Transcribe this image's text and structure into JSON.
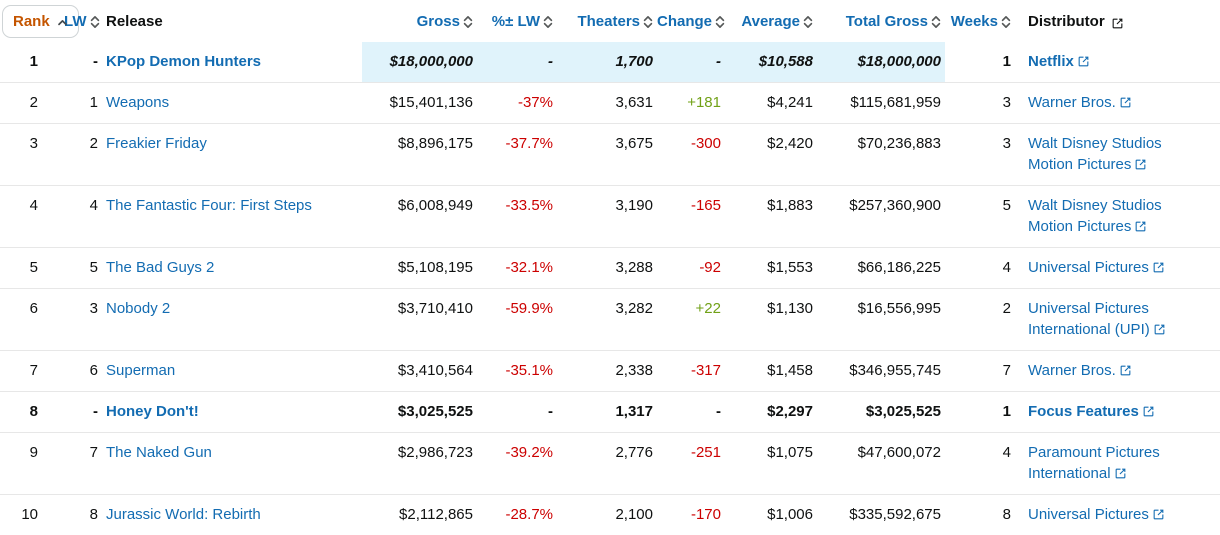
{
  "colors": {
    "link_blue": "#136cb2",
    "rank_sorted_orange": "#c45500",
    "negative_red": "#cc0000",
    "positive_green": "#71a117",
    "estimate_highlight_blue": "#e0f3fb",
    "row_divider_gray": "#e7e7e7",
    "text_black": "#0f1111",
    "sort_icon_gray": "#565959"
  },
  "table": {
    "columns": [
      {
        "key": "rank",
        "label": "Rank",
        "align": "right",
        "sortable": true,
        "sorted": "asc",
        "icon": "chevron-up-icon"
      },
      {
        "key": "lw",
        "label": "LW",
        "align": "right",
        "sortable": true,
        "icon": "sort-chevrons-icon"
      },
      {
        "key": "release",
        "label": "Release",
        "align": "left",
        "sortable": false
      },
      {
        "key": "gross",
        "label": "Gross",
        "align": "right",
        "sortable": true,
        "icon": "sort-chevrons-icon"
      },
      {
        "key": "pct_lw",
        "label": "%± LW",
        "align": "right",
        "sortable": true,
        "icon": "sort-chevrons-icon"
      },
      {
        "key": "theaters",
        "label": "Theaters",
        "align": "right",
        "sortable": true,
        "icon": "sort-chevrons-icon"
      },
      {
        "key": "change",
        "label": "Change",
        "align": "right",
        "sortable": true,
        "icon": "sort-chevrons-icon"
      },
      {
        "key": "average",
        "label": "Average",
        "align": "right",
        "sortable": true,
        "icon": "sort-chevrons-icon"
      },
      {
        "key": "total_gross",
        "label": "Total Gross",
        "align": "right",
        "sortable": true,
        "icon": "sort-chevrons-icon"
      },
      {
        "key": "weeks",
        "label": "Weeks",
        "align": "right",
        "sortable": true,
        "icon": "sort-chevrons-icon"
      },
      {
        "key": "distributor",
        "label": "Distributor",
        "align": "left",
        "sortable": false,
        "icon": "external-link-icon"
      }
    ],
    "rows": [
      {
        "rank": "1",
        "lw": "-",
        "release": "KPop Demon Hunters",
        "gross": "$18,000,000",
        "pct_lw": "-",
        "theaters": "1,700",
        "change": "-",
        "average": "$10,588",
        "total_gross": "$18,000,000",
        "weeks": "1",
        "distributor": "Netflix",
        "new_release": true,
        "estimated": true
      },
      {
        "rank": "2",
        "lw": "1",
        "release": "Weapons",
        "gross": "$15,401,136",
        "pct_lw": "-37%",
        "theaters": "3,631",
        "change": "+181",
        "average": "$4,241",
        "total_gross": "$115,681,959",
        "weeks": "3",
        "distributor": "Warner Bros.",
        "new_release": false,
        "estimated": false
      },
      {
        "rank": "3",
        "lw": "2",
        "release": "Freakier Friday",
        "gross": "$8,896,175",
        "pct_lw": "-37.7%",
        "theaters": "3,675",
        "change": "-300",
        "average": "$2,420",
        "total_gross": "$70,236,883",
        "weeks": "3",
        "distributor": "Walt Disney Studios Motion Pictures",
        "new_release": false,
        "estimated": false
      },
      {
        "rank": "4",
        "lw": "4",
        "release": "The Fantastic Four: First Steps",
        "gross": "$6,008,949",
        "pct_lw": "-33.5%",
        "theaters": "3,190",
        "change": "-165",
        "average": "$1,883",
        "total_gross": "$257,360,900",
        "weeks": "5",
        "distributor": "Walt Disney Studios Motion Pictures",
        "new_release": false,
        "estimated": false
      },
      {
        "rank": "5",
        "lw": "5",
        "release": "The Bad Guys 2",
        "gross": "$5,108,195",
        "pct_lw": "-32.1%",
        "theaters": "3,288",
        "change": "-92",
        "average": "$1,553",
        "total_gross": "$66,186,225",
        "weeks": "4",
        "distributor": "Universal Pictures",
        "new_release": false,
        "estimated": false
      },
      {
        "rank": "6",
        "lw": "3",
        "release": "Nobody 2",
        "gross": "$3,710,410",
        "pct_lw": "-59.9%",
        "theaters": "3,282",
        "change": "+22",
        "average": "$1,130",
        "total_gross": "$16,556,995",
        "weeks": "2",
        "distributor": "Universal Pictures International (UPI)",
        "new_release": false,
        "estimated": false
      },
      {
        "rank": "7",
        "lw": "6",
        "release": "Superman",
        "gross": "$3,410,564",
        "pct_lw": "-35.1%",
        "theaters": "2,338",
        "change": "-317",
        "average": "$1,458",
        "total_gross": "$346,955,745",
        "weeks": "7",
        "distributor": "Warner Bros.",
        "new_release": false,
        "estimated": false
      },
      {
        "rank": "8",
        "lw": "-",
        "release": "Honey Don't!",
        "gross": "$3,025,525",
        "pct_lw": "-",
        "theaters": "1,317",
        "change": "-",
        "average": "$2,297",
        "total_gross": "$3,025,525",
        "weeks": "1",
        "distributor": "Focus Features",
        "new_release": true,
        "estimated": false
      },
      {
        "rank": "9",
        "lw": "7",
        "release": "The Naked Gun",
        "gross": "$2,986,723",
        "pct_lw": "-39.2%",
        "theaters": "2,776",
        "change": "-251",
        "average": "$1,075",
        "total_gross": "$47,600,072",
        "weeks": "4",
        "distributor": "Paramount Pictures International",
        "new_release": false,
        "estimated": false
      },
      {
        "rank": "10",
        "lw": "8",
        "release": "Jurassic World: Rebirth",
        "gross": "$2,112,865",
        "pct_lw": "-28.7%",
        "theaters": "2,100",
        "change": "-170",
        "average": "$1,006",
        "total_gross": "$335,592,675",
        "weeks": "8",
        "distributor": "Universal Pictures",
        "new_release": false,
        "estimated": false
      }
    ]
  }
}
